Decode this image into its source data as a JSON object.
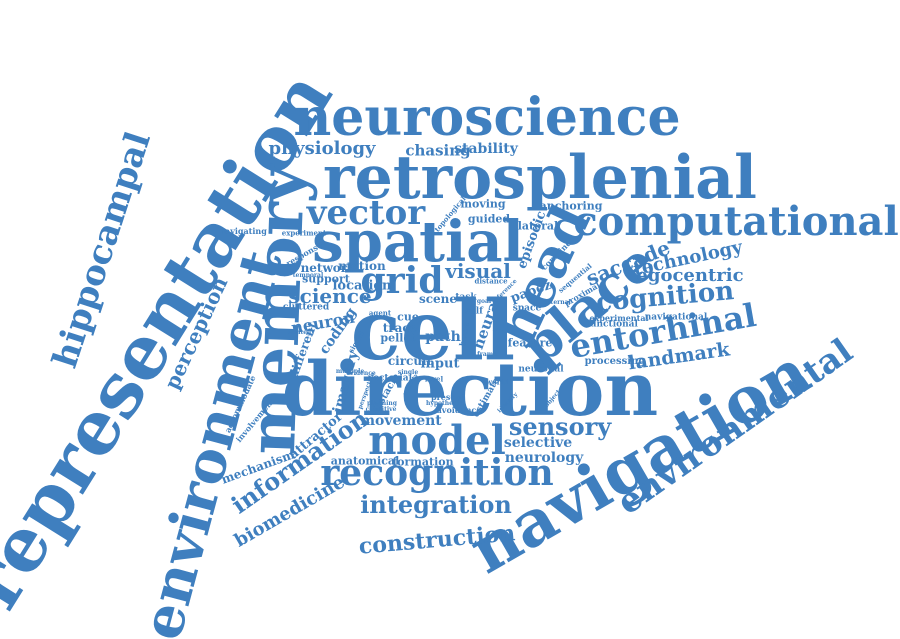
{
  "colors": {
    "primary": "#3f7fbf",
    "background": "#ffffff"
  },
  "words": [
    "representation",
    "environment",
    "memory",
    "hippocampal",
    "perception",
    "neuroscience",
    "retrosplenial",
    "computational",
    "spatial",
    "vector",
    "physiology",
    "chasing",
    "stability",
    "cell",
    "direction",
    "head",
    "place",
    "grid",
    "navigation",
    "environmental",
    "model",
    "recognition",
    "integration",
    "construction",
    "sensory",
    "entorhinal",
    "cognition",
    "egocentric",
    "landmark",
    "technology",
    "saccade",
    "information",
    "biomedicine",
    "mechanism",
    "neurology",
    "selective",
    "anatomical",
    "formation",
    "movement",
    "attractor",
    "science",
    "network",
    "support",
    "location",
    "visual",
    "motion",
    "neuron",
    "coding",
    "imagery",
    "scene",
    "episodic",
    "guided",
    "moving",
    "anchoring",
    "lateral",
    "path",
    "input",
    "circuit",
    "trace",
    "pellet",
    "obstacle",
    "cue",
    "papez",
    "neural",
    "different",
    "navigational",
    "experimental",
    "processing",
    "functional",
    "neuronal",
    "feature",
    "space",
    "self",
    "task",
    "estimate",
    "avoidance",
    "present",
    "accommodate",
    "involvement",
    "cluttered",
    "response",
    "navigating",
    "experiment",
    "vectorial",
    "proximal",
    "combine",
    "distance",
    "home",
    "topological",
    "sequential",
    "world",
    "agent",
    "hypothesis",
    "planning",
    "evidence",
    "activity",
    "strategy",
    "cognitive",
    "perspective",
    "signal",
    "level",
    "reference",
    "identify",
    "external",
    "multiple",
    "temporal",
    "single",
    "frame",
    "goal",
    "object"
  ]
}
